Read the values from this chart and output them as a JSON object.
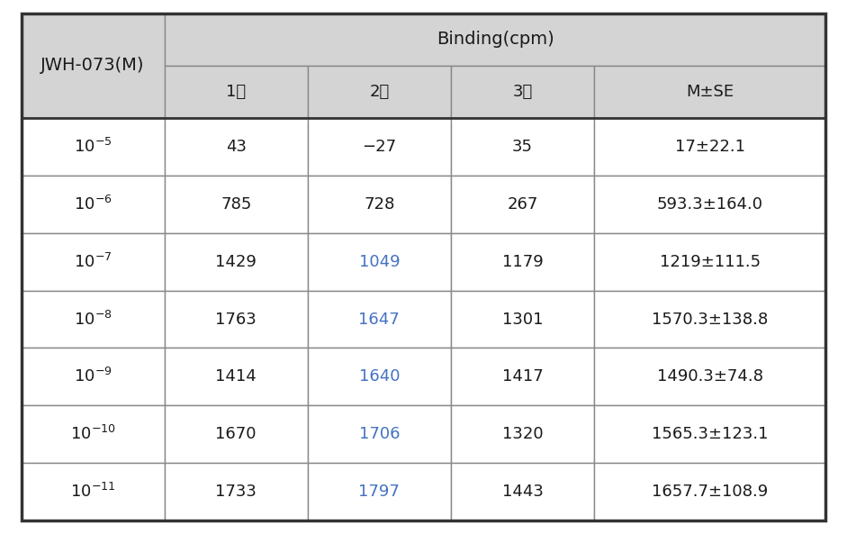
{
  "col0_header": "JWH-073(M)",
  "binding_header": "Binding(cpm)",
  "sub_headers": [
    "1차",
    "2차",
    "3차",
    "M±SE"
  ],
  "exponents": [
    "-5",
    "-6",
    "-7",
    "-8",
    "-9",
    "-10",
    "-11"
  ],
  "col1": [
    "43",
    "785",
    "1429",
    "1763",
    "1414",
    "1670",
    "1733"
  ],
  "col2": [
    "−27",
    "728",
    "1049",
    "1647",
    "1640",
    "1706",
    "1797"
  ],
  "col3": [
    "35",
    "267",
    "1179",
    "1301",
    "1417",
    "1320",
    "1443"
  ],
  "col4": [
    "17±22.1",
    "593.3±164.0",
    "1219±111.5",
    "1570.3±138.8",
    "1490.3±74.8",
    "1565.3±123.1",
    "1657.7±108.9"
  ],
  "col2_blue_rows": [
    2,
    3,
    4,
    5,
    6
  ],
  "header_bg": "#d4d4d4",
  "white_bg": "#ffffff",
  "border_color_outer": "#333333",
  "border_color_inner": "#888888",
  "text_color_black": "#1a1a1a",
  "text_color_blue": "#4472c4",
  "font_size_header": 14,
  "font_size_subheader": 13,
  "font_size_data": 13
}
